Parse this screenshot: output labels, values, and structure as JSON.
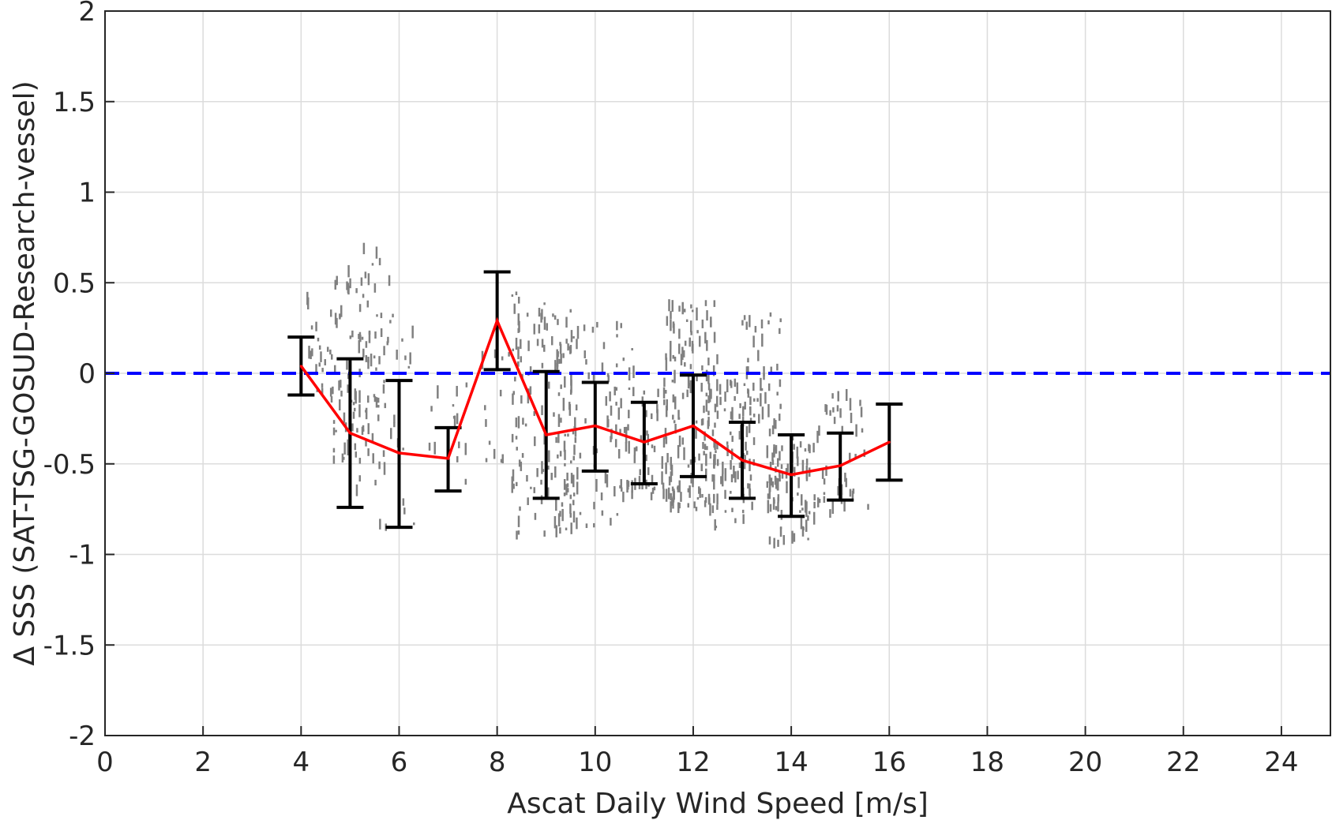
{
  "chart_data": {
    "type": "scatter",
    "xlabel": "Ascat Daily Wind Speed [m/s]",
    "ylabel": "Δ SSS (SAT-TSG-GOSUD-Research-vessel)",
    "xlim": [
      0,
      25
    ],
    "ylim": [
      -2,
      2
    ],
    "x_ticks": [
      0,
      2,
      4,
      6,
      8,
      10,
      12,
      14,
      16,
      18,
      20,
      22,
      24
    ],
    "x_tick_labels": [
      "0",
      "2",
      "4",
      "6",
      "8",
      "10",
      "12",
      "14",
      "16",
      "18",
      "20",
      "22",
      "24"
    ],
    "y_ticks": [
      -2,
      -1.5,
      -1,
      -0.5,
      0,
      0.5,
      1,
      1.5,
      2
    ],
    "y_tick_labels": [
      "-2",
      "-1.5",
      "-1",
      "-0.5",
      "0",
      "0.5",
      "1",
      "1.5",
      "2"
    ],
    "grid": true,
    "reference_line": {
      "y": 0,
      "color": "#0000ff",
      "style": "dashed"
    },
    "scatter_color": "#808080",
    "mean_line_color": "#ff0000",
    "errorbar_color": "#000000",
    "mean_series": {
      "x": [
        4,
        5,
        6,
        7,
        8,
        9,
        10,
        11,
        12,
        13,
        14,
        15,
        16
      ],
      "y": [
        0.04,
        -0.33,
        -0.44,
        -0.47,
        0.29,
        -0.34,
        -0.29,
        -0.38,
        -0.29,
        -0.48,
        -0.56,
        -0.51,
        -0.38
      ],
      "lower": [
        -0.12,
        -0.74,
        -0.85,
        -0.65,
        0.02,
        -0.69,
        -0.54,
        -0.61,
        -0.57,
        -0.69,
        -0.79,
        -0.7,
        -0.59
      ],
      "upper": [
        0.2,
        0.08,
        -0.04,
        -0.3,
        0.56,
        0.01,
        -0.05,
        -0.16,
        -0.01,
        -0.27,
        -0.34,
        -0.33,
        -0.17
      ]
    },
    "scatter_clusters": [
      {
        "x_from": 4.1,
        "x_to": 4.6,
        "y_from": -0.15,
        "y_to": 0.45,
        "n": 20
      },
      {
        "x_from": 4.6,
        "x_to": 5.4,
        "y_from": -0.5,
        "y_to": 0.6,
        "n": 70
      },
      {
        "x_from": 5.0,
        "x_to": 5.8,
        "y_from": -0.65,
        "y_to": 0.72,
        "n": 40
      },
      {
        "x_from": 5.5,
        "x_to": 6.3,
        "y_from": -0.85,
        "y_to": 0.5,
        "n": 30
      },
      {
        "x_from": 6.5,
        "x_to": 7.4,
        "y_from": -0.6,
        "y_to": 0.0,
        "n": 15
      },
      {
        "x_from": 7.6,
        "x_to": 8.6,
        "y_from": -0.55,
        "y_to": 0.45,
        "n": 25
      },
      {
        "x_from": 8.3,
        "x_to": 9.6,
        "y_from": -0.9,
        "y_to": 0.4,
        "n": 110
      },
      {
        "x_from": 9.2,
        "x_to": 10.8,
        "y_from": -0.85,
        "y_to": 0.3,
        "n": 100
      },
      {
        "x_from": 10.5,
        "x_to": 11.6,
        "y_from": -0.7,
        "y_to": -0.1,
        "n": 50
      },
      {
        "x_from": 11.4,
        "x_to": 12.5,
        "y_from": -0.75,
        "y_to": 0.42,
        "n": 150
      },
      {
        "x_from": 12.3,
        "x_to": 13.2,
        "y_from": -0.85,
        "y_to": -0.05,
        "n": 80
      },
      {
        "x_from": 13.0,
        "x_to": 13.8,
        "y_from": -0.85,
        "y_to": 0.35,
        "n": 60
      },
      {
        "x_from": 13.5,
        "x_to": 14.5,
        "y_from": -0.95,
        "y_to": -0.35,
        "n": 80
      },
      {
        "x_from": 14.5,
        "x_to": 15.6,
        "y_from": -0.8,
        "y_to": -0.1,
        "n": 45
      }
    ]
  }
}
